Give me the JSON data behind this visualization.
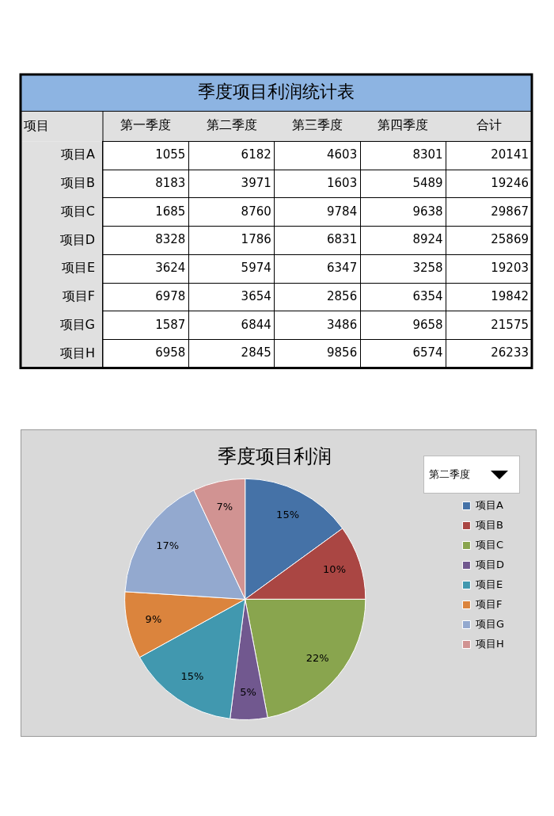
{
  "chart_data": [
    {
      "type": "heatmap",
      "title": "季度项目利润统计表",
      "ylabel": "项目",
      "data_labels": true,
      "categories": [
        "第一季度",
        "第二季度",
        "第三季度",
        "第四季度",
        "合计"
      ],
      "y_categories": [
        "项目A",
        "项目B",
        "项目C",
        "项目D",
        "项目E",
        "项目F",
        "项目G",
        "项目H"
      ],
      "cells": [
        [
          1055,
          6182,
          4603,
          8301,
          20141
        ],
        [
          8183,
          3971,
          1603,
          5489,
          19246
        ],
        [
          1685,
          8760,
          9784,
          9638,
          29867
        ],
        [
          8328,
          1786,
          6831,
          8924,
          25869
        ],
        [
          3624,
          5974,
          6347,
          3258,
          19203
        ],
        [
          6978,
          3654,
          2856,
          6354,
          19842
        ],
        [
          1587,
          6844,
          3486,
          9658,
          21575
        ],
        [
          6958,
          2845,
          9856,
          6574,
          26233
        ]
      ]
    },
    {
      "type": "pie",
      "title": "季度项目利润",
      "annotations": [
        "第二季度"
      ],
      "legend": "right",
      "categories": [
        "项目A",
        "项目B",
        "项目C",
        "项目D",
        "项目E",
        "项目F",
        "项目G",
        "项目H"
      ],
      "values": [
        15,
        10,
        22,
        5,
        15,
        9,
        17,
        7
      ],
      "value_labels": [
        "15%",
        "10%",
        "22%",
        "5%",
        "15%",
        "9%",
        "17%",
        "7%"
      ],
      "colors": [
        "#4572a7",
        "#aa4643",
        "#89a54e",
        "#71588f",
        "#4198af",
        "#db843d",
        "#93a9cf",
        "#d19392"
      ]
    }
  ]
}
